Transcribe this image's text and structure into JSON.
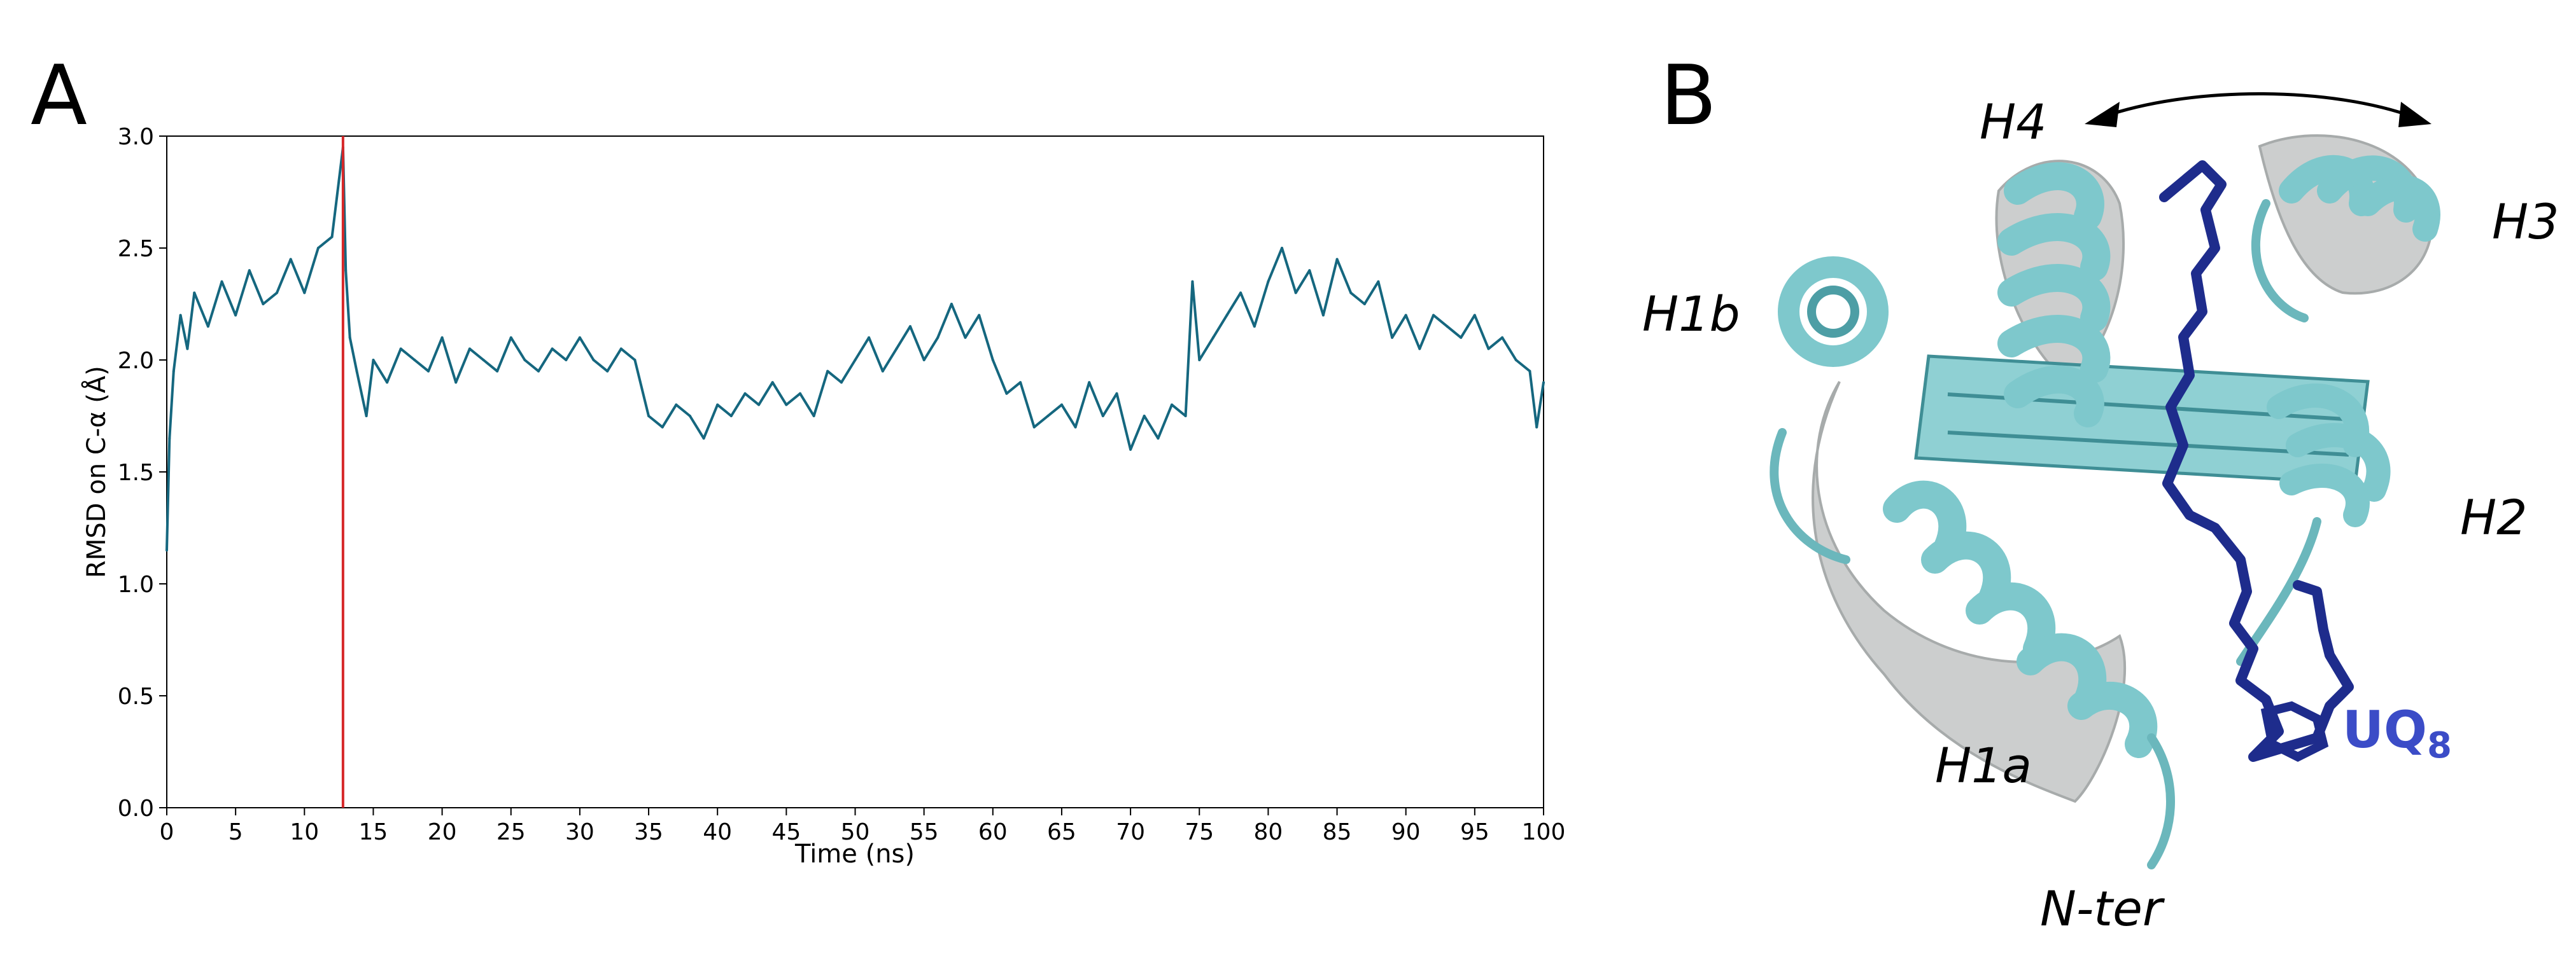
{
  "panels": {
    "a_letter": "A",
    "b_letter": "B"
  },
  "chart_data": {
    "type": "line",
    "title": "",
    "xlabel": "Time (ns)",
    "ylabel": "RMSD on C-α (Å)",
    "xlim": [
      0,
      100
    ],
    "ylim": [
      0.0,
      3.0
    ],
    "x_ticks": [
      "0",
      "5",
      "10",
      "15",
      "20",
      "25",
      "30",
      "35",
      "40",
      "45",
      "50",
      "55",
      "60",
      "65",
      "70",
      "75",
      "80",
      "85",
      "90",
      "95",
      "100"
    ],
    "y_ticks": [
      "0.0",
      "0.5",
      "1.0",
      "1.5",
      "2.0",
      "2.5",
      "3.0"
    ],
    "grid": false,
    "legend": "none",
    "line_color": "#15677f",
    "marker_line": {
      "x": 12.8,
      "color": "#d62728"
    },
    "series": [
      {
        "x": [
          0,
          0.2,
          0.5,
          1,
          1.5,
          2,
          3,
          4,
          5,
          6,
          7,
          8,
          9,
          10,
          11,
          12,
          12.5,
          12.8,
          13,
          13.3,
          13.8,
          14.5,
          15,
          16,
          17,
          18,
          19,
          20,
          21,
          22,
          23,
          24,
          25,
          26,
          27,
          28,
          29,
          30,
          31,
          32,
          33,
          34,
          35,
          36,
          37,
          38,
          39,
          40,
          41,
          42,
          43,
          44,
          45,
          46,
          47,
          48,
          49,
          50,
          51,
          52,
          53,
          54,
          55,
          56,
          57,
          58,
          59,
          60,
          61,
          62,
          63,
          64,
          65,
          66,
          67,
          68,
          69,
          70,
          71,
          72,
          73,
          74,
          74.5,
          75,
          76,
          77,
          78,
          79,
          80,
          81,
          82,
          83,
          84,
          85,
          86,
          87,
          88,
          89,
          90,
          91,
          92,
          93,
          94,
          95,
          96,
          97,
          98,
          99,
          99.5,
          100
        ],
        "y": [
          1.15,
          1.65,
          1.95,
          2.2,
          2.05,
          2.3,
          2.15,
          2.35,
          2.2,
          2.4,
          2.25,
          2.3,
          2.45,
          2.3,
          2.5,
          2.55,
          2.8,
          2.95,
          2.4,
          2.1,
          1.95,
          1.75,
          2.0,
          1.9,
          2.05,
          2.0,
          1.95,
          2.1,
          1.9,
          2.05,
          2.0,
          1.95,
          2.1,
          2.0,
          1.95,
          2.05,
          2.0,
          2.1,
          2.0,
          1.95,
          2.05,
          2.0,
          1.75,
          1.7,
          1.8,
          1.75,
          1.65,
          1.8,
          1.75,
          1.85,
          1.8,
          1.9,
          1.8,
          1.85,
          1.75,
          1.95,
          1.9,
          2.0,
          2.1,
          1.95,
          2.05,
          2.15,
          2.0,
          2.1,
          2.25,
          2.1,
          2.2,
          2.0,
          1.85,
          1.9,
          1.7,
          1.75,
          1.8,
          1.7,
          1.9,
          1.75,
          1.85,
          1.6,
          1.75,
          1.65,
          1.8,
          1.75,
          2.35,
          2.0,
          2.1,
          2.2,
          2.3,
          2.15,
          2.35,
          2.5,
          2.3,
          2.4,
          2.2,
          2.45,
          2.3,
          2.25,
          2.35,
          2.1,
          2.2,
          2.05,
          2.2,
          2.15,
          2.1,
          2.2,
          2.05,
          2.1,
          2.0,
          1.95,
          1.7,
          1.9
        ]
      }
    ]
  },
  "structure": {
    "labels": {
      "h4": "H4",
      "h3": "H3",
      "h1b": "H1b",
      "h2": "H2",
      "h1a": "H1a",
      "nter": "N-ter",
      "ligand": "UQ",
      "ligand_sub": "8"
    },
    "colors": {
      "cartoon_cyan": "#7ec8cc",
      "cartoon_cyan_dark": "#4d9ea5",
      "cartoon_grey": "#c7c9c9",
      "ligand": "#1e2c8c",
      "ligand_label": "#3b4cc7"
    }
  }
}
